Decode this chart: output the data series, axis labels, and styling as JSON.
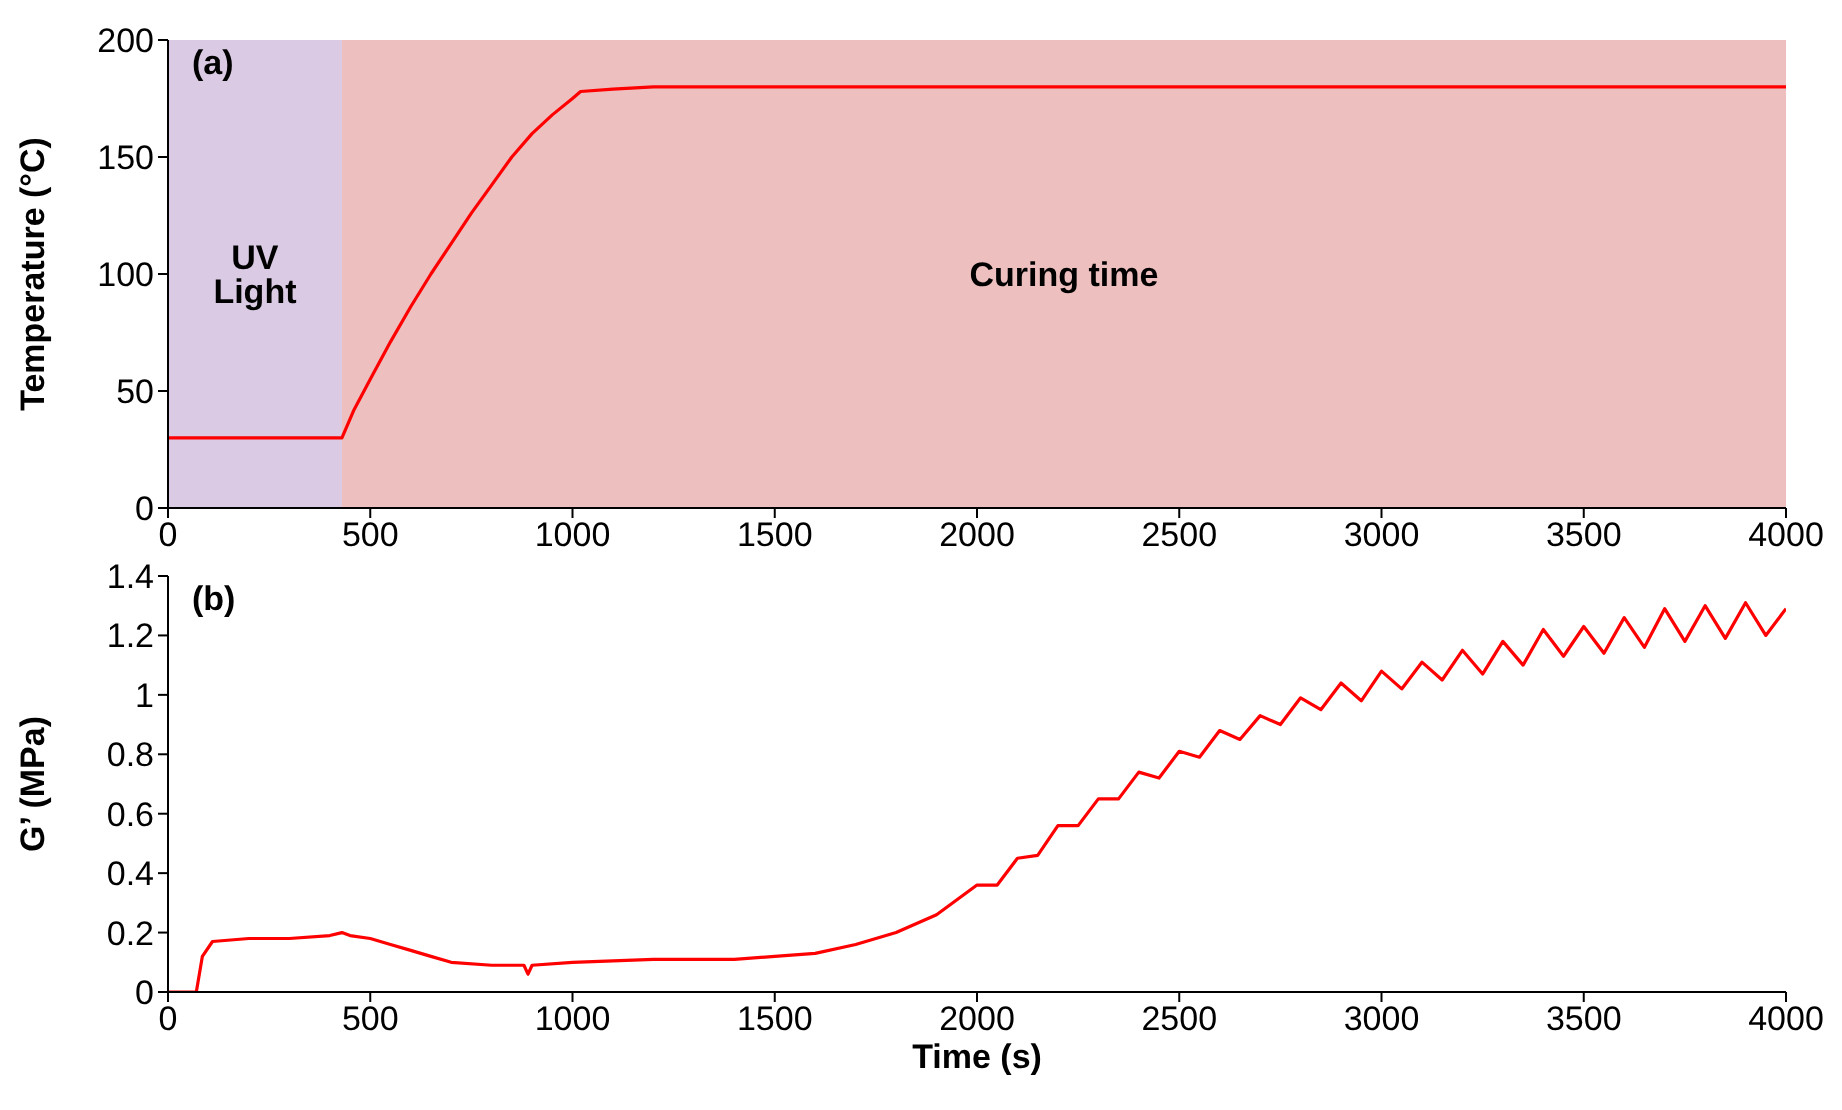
{
  "chart_data": [
    {
      "type": "line",
      "ylabel": "Temperature (°C)",
      "annotations": [
        "(a)"
      ],
      "xlim": [
        0,
        4000
      ],
      "xticks": [
        0,
        500,
        1000,
        1500,
        2000,
        2500,
        3000,
        3500,
        4000
      ],
      "ylim": [
        0,
        200
      ],
      "yticks": [
        0,
        50,
        100,
        150,
        200
      ],
      "bands": [
        {
          "axis": "x",
          "from": 0,
          "to": 430,
          "label": "UV Light",
          "color": "#dacae4"
        },
        {
          "axis": "x",
          "from": 430,
          "to": 4000,
          "label": "Curing time",
          "color": "#eebfbf"
        }
      ],
      "series": [
        {
          "color": "#ff0000",
          "x": [
            0,
            430,
            460,
            500,
            550,
            600,
            650,
            700,
            750,
            800,
            850,
            900,
            950,
            1000,
            1020,
            1100,
            1200,
            4000
          ],
          "values": [
            30,
            30,
            42,
            55,
            71,
            86,
            100,
            113,
            126,
            138,
            150,
            160,
            168,
            175,
            178,
            179,
            180,
            180
          ]
        }
      ]
    },
    {
      "type": "line",
      "xlabel": "Time (s)",
      "ylabel": "G’ (MPa)",
      "annotations": [
        "(b)"
      ],
      "xlim": [
        0,
        4000
      ],
      "xticks": [
        0,
        500,
        1000,
        1500,
        2000,
        2500,
        3000,
        3500,
        4000
      ],
      "ylim": [
        0,
        1.4
      ],
      "yticks": [
        0,
        0.2,
        0.4,
        0.6,
        0.8,
        1,
        1.2,
        1.4
      ],
      "series": [
        {
          "color": "#ff0000",
          "x": [
            0,
            65,
            70,
            85,
            110,
            200,
            300,
            400,
            430,
            450,
            500,
            550,
            600,
            650,
            700,
            800,
            880,
            890,
            900,
            1000,
            1200,
            1400,
            1500,
            1600,
            1700,
            1800,
            1900,
            2000,
            2050,
            2100,
            2150,
            2200,
            2250,
            2300,
            2350,
            2400,
            2450,
            2500,
            2550,
            2600,
            2650,
            2700,
            2750,
            2800,
            2850,
            2900,
            2950,
            3000,
            3050,
            3100,
            3150,
            3200,
            3250,
            3300,
            3350,
            3400,
            3450,
            3500,
            3550,
            3600,
            3650,
            3700,
            3750,
            3800,
            3850,
            3900,
            3950,
            4000
          ],
          "values": [
            0,
            0,
            0,
            0.12,
            0.17,
            0.18,
            0.18,
            0.19,
            0.2,
            0.19,
            0.18,
            0.16,
            0.14,
            0.12,
            0.1,
            0.09,
            0.09,
            0.06,
            0.09,
            0.1,
            0.11,
            0.11,
            0.12,
            0.13,
            0.16,
            0.2,
            0.26,
            0.36,
            0.36,
            0.45,
            0.46,
            0.56,
            0.56,
            0.65,
            0.65,
            0.74,
            0.72,
            0.81,
            0.79,
            0.88,
            0.85,
            0.93,
            0.9,
            0.99,
            0.95,
            1.04,
            0.98,
            1.08,
            1.02,
            1.11,
            1.05,
            1.15,
            1.07,
            1.18,
            1.1,
            1.22,
            1.13,
            1.23,
            1.14,
            1.26,
            1.16,
            1.29,
            1.18,
            1.3,
            1.19,
            1.31,
            1.2,
            1.29
          ]
        }
      ]
    }
  ]
}
